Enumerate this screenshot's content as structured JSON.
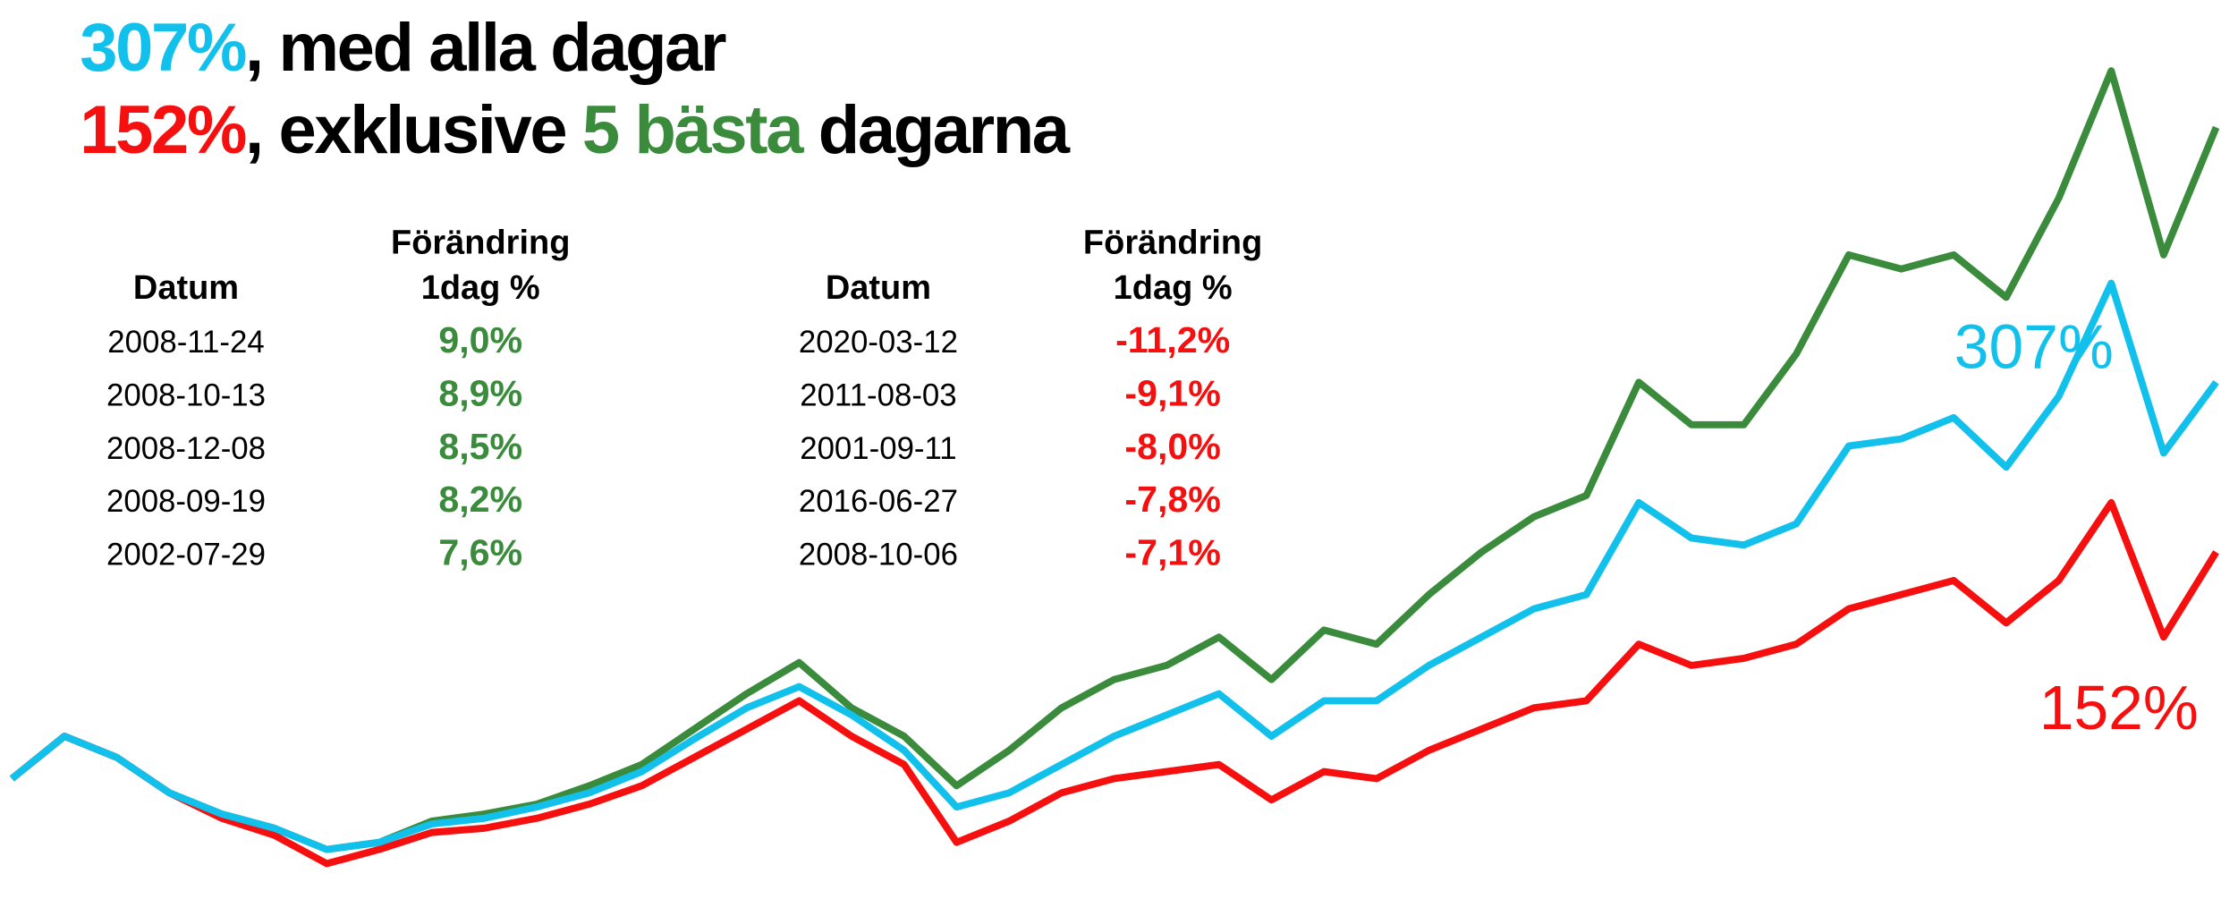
{
  "header": {
    "lines": [
      [
        {
          "text": "307%",
          "color": "#12c0ec"
        },
        {
          "text": ", med alla dagar",
          "color": "#000000"
        }
      ],
      [
        {
          "text": "152%",
          "color": "#f50f0f"
        },
        {
          "text": ", exklusive ",
          "color": "#000000"
        },
        {
          "text": "5 bästa",
          "color": "#3a8b3c"
        },
        {
          "text": " dagarna",
          "color": "#000000"
        }
      ]
    ]
  },
  "tables": [
    {
      "headers": [
        [
          "Datum"
        ],
        [
          "Förändring",
          "1dag %"
        ]
      ],
      "value_color": "#3a8b3c",
      "rows": [
        [
          "2008-11-24",
          "9,0%"
        ],
        [
          "2008-10-13",
          "8,9%"
        ],
        [
          "2008-12-08",
          "8,5%"
        ],
        [
          "2008-09-19",
          "8,2%"
        ],
        [
          "2002-07-29",
          "7,6%"
        ]
      ]
    },
    {
      "headers": [
        [
          "Datum"
        ],
        [
          "Förändring",
          "1dag %"
        ]
      ],
      "value_color": "#f50f0f",
      "rows": [
        [
          "2020-03-12",
          "-11,2%"
        ],
        [
          "2011-08-03",
          "-9,1%"
        ],
        [
          "2001-09-11",
          "-8,0%"
        ],
        [
          "2016-06-27",
          "-7,8%"
        ],
        [
          "2008-10-06",
          "-7,1%"
        ]
      ]
    }
  ],
  "chart_data": {
    "type": "line",
    "ylim": [
      0,
      647
    ],
    "series": [
      {
        "name": "307%",
        "color": "#3a8b3c",
        "values": [
          97,
          127,
          112,
          87,
          72,
          62,
          47,
          52,
          67,
          72,
          79,
          92,
          107,
          132,
          157,
          179,
          147,
          127,
          92,
          117,
          147,
          167,
          177,
          197,
          167,
          202,
          192,
          227,
          257,
          282,
          297,
          377,
          347,
          347,
          397,
          467,
          457,
          467,
          437,
          507,
          597,
          467,
          557
        ]
      },
      {
        "name": "307%",
        "color": "#12c0ec",
        "values": [
          97,
          127,
          112,
          87,
          72,
          62,
          47,
          52,
          65,
          69,
          77,
          87,
          102,
          125,
          147,
          162,
          142,
          117,
          77,
          87,
          107,
          127,
          142,
          157,
          127,
          152,
          152,
          177,
          197,
          217,
          227,
          292,
          267,
          262,
          277,
          332,
          337,
          352,
          317,
          367,
          447,
          327,
          377
        ]
      },
      {
        "name": "152%",
        "color": "#f50f0f",
        "values": [
          97,
          127,
          112,
          87,
          69,
          57,
          37,
          47,
          59,
          62,
          69,
          79,
          92,
          112,
          132,
          152,
          127,
          107,
          52,
          67,
          87,
          97,
          102,
          107,
          82,
          102,
          97,
          117,
          132,
          147,
          152,
          192,
          177,
          182,
          192,
          217,
          227,
          237,
          207,
          237,
          292,
          197,
          257
        ]
      }
    ]
  }
}
